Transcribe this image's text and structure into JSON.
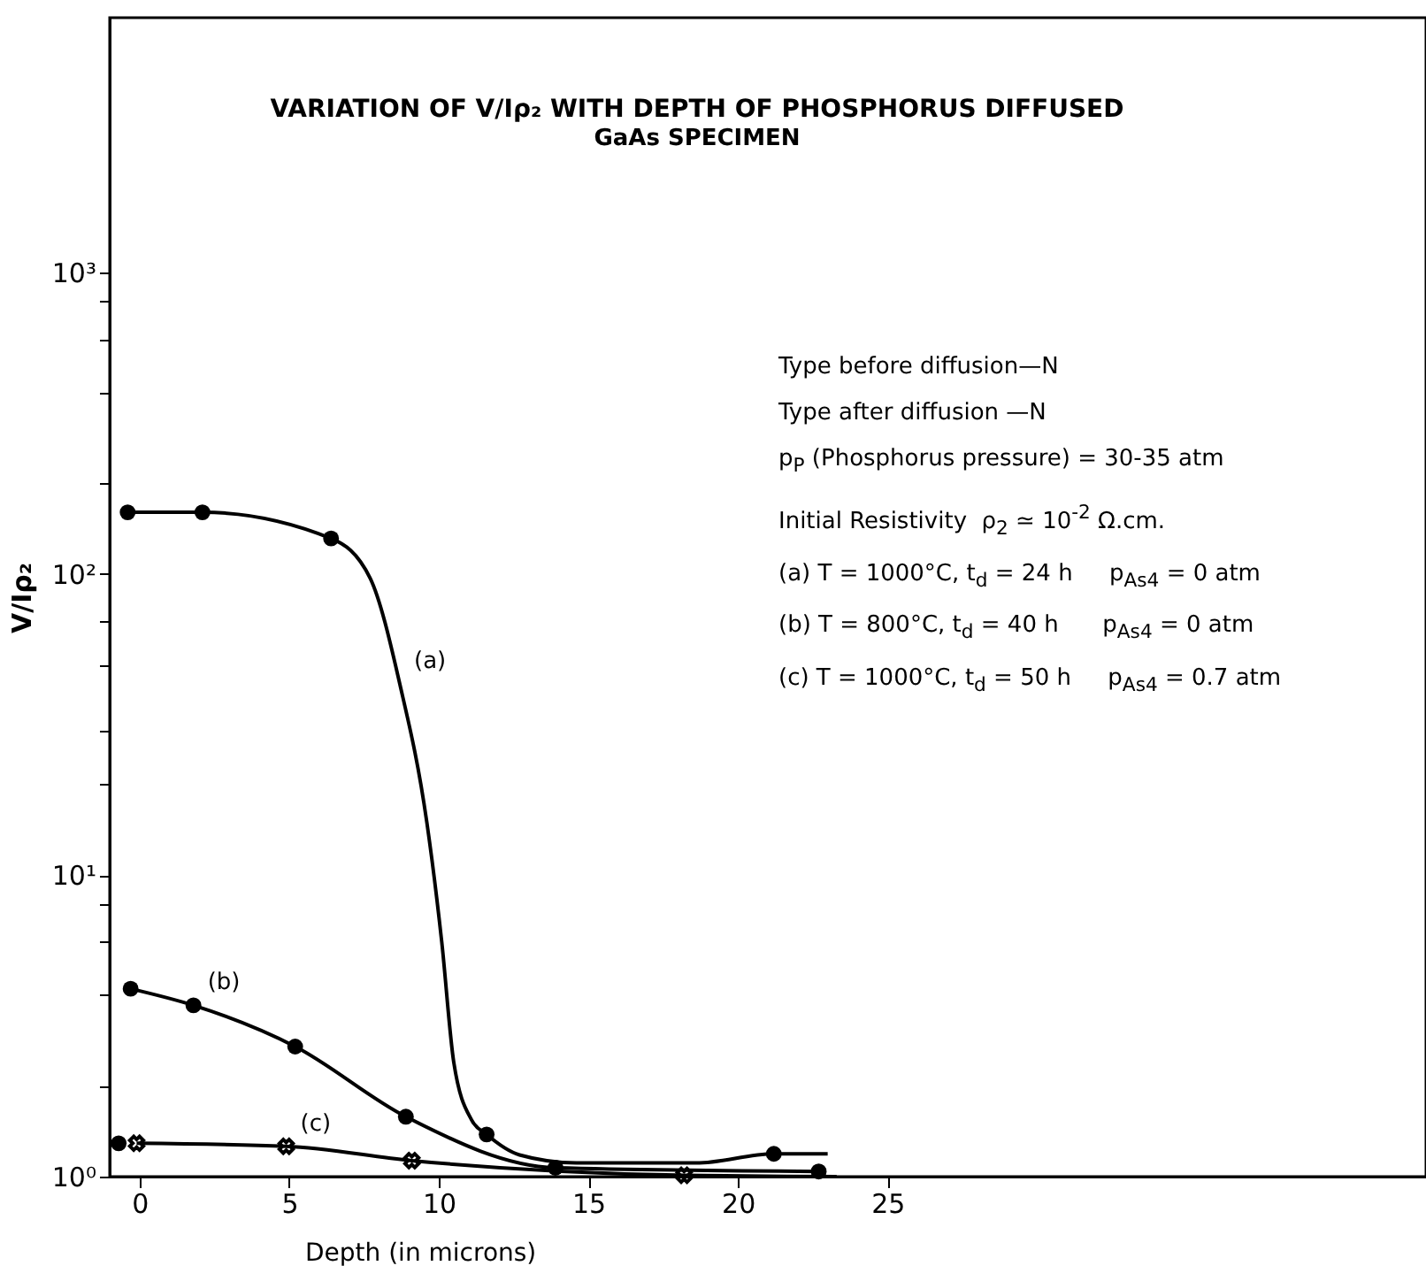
{
  "chart_data": {
    "type": "line",
    "title": "VARIATION OF V/Iρ₂ WITH DEPTH OF PHOSPHORUS DIFFUSED",
    "subtitle": "GaAs SPECIMEN",
    "xlabel": "Depth (in microns)",
    "ylabel": "V/Iρ₂",
    "log": "y",
    "grid": false,
    "line_style": "solid",
    "xlim": [
      -1,
      43
    ],
    "xticks": [
      0,
      5,
      10,
      15,
      20,
      25
    ],
    "ylim": [
      1,
      7000
    ],
    "yticks": [
      {
        "value": 1,
        "label": "10⁰"
      },
      {
        "value": 2,
        "label": null
      },
      {
        "value": 4,
        "label": null
      },
      {
        "value": 6,
        "label": null
      },
      {
        "value": 8,
        "label": null
      },
      {
        "value": 10,
        "label": "10¹"
      },
      {
        "value": 20,
        "label": null
      },
      {
        "value": 30,
        "label": null
      },
      {
        "value": 50,
        "label": null
      },
      {
        "value": 70,
        "label": null
      },
      {
        "value": 100,
        "label": "10²"
      },
      {
        "value": 200,
        "label": null
      },
      {
        "value": 400,
        "label": null
      },
      {
        "value": 600,
        "label": null
      },
      {
        "value": 800,
        "label": null
      },
      {
        "value": 1000,
        "label": "10³"
      }
    ],
    "series": [
      {
        "type": "line",
        "name": "(a)",
        "marker": "none",
        "color": "#000000",
        "x": [
          -0.4,
          2.1,
          6.4,
          7.7,
          8.7,
          9.6,
          10.1,
          10.5,
          11.1,
          11.6,
          12.7,
          14.6,
          18.6,
          21.2,
          23
        ],
        "values": [
          160,
          160,
          131,
          97,
          43,
          15,
          6,
          2.4,
          1.54,
          1.38,
          1.18,
          1.11,
          1.11,
          1.19,
          1.19
        ]
      },
      {
        "type": "scatter",
        "marker": "circle",
        "color": "#000000",
        "x": [
          -0.4,
          2.1,
          6.4,
          11.6,
          21.2
        ],
        "values": [
          160,
          160,
          131,
          1.38,
          1.19
        ]
      },
      {
        "type": "line",
        "name": "(b)",
        "marker": "none",
        "color": "#000000",
        "x": [
          -0.3,
          1.8,
          5.2,
          8.9,
          13.9,
          22.7
        ],
        "values": [
          4.2,
          3.7,
          2.7,
          1.58,
          1.07,
          1.04
        ]
      },
      {
        "type": "scatter",
        "marker": "circle",
        "color": "#000000",
        "x": [
          -0.7,
          -0.3,
          1.8,
          5.2,
          8.9,
          13.9,
          22.7
        ],
        "values": [
          1.29,
          4.2,
          3.7,
          2.7,
          1.58,
          1.07,
          1.04
        ]
      },
      {
        "type": "line",
        "name": "(c)",
        "marker": "none",
        "color": "#000000",
        "x": [
          -0.1,
          4.9,
          9.1,
          18.2,
          23.3
        ],
        "values": [
          1.29,
          1.26,
          1.13,
          1.01,
          1
        ]
      },
      {
        "type": "scatter",
        "marker": "cross",
        "color": "#000000",
        "x": [
          -0.1,
          4.9,
          9.1,
          18.2
        ],
        "values": [
          1.29,
          1.26,
          1.13,
          1.01
        ]
      }
    ],
    "annotations": [
      "Type before diffusion—N",
      "Type after diffusion —N",
      "p$_{P}$ (Phosphorus pressure) = 30-35 atm",
      "Initial Resistivity  ρ$_{2}$ ≃ 10$^{-2}$ Ω.cm.",
      "(a) T = 1000°C, t$_{d}$ = 24 h     p$_{As4}$ = 0 atm",
      "(b) T = 800°C, t$_{d}$ = 40 h      p$_{As4}$ = 0 atm",
      "(c) T = 1000°C, t$_{d}$ = 50 h     p$_{As4}$ = 0.7 atm"
    ]
  }
}
